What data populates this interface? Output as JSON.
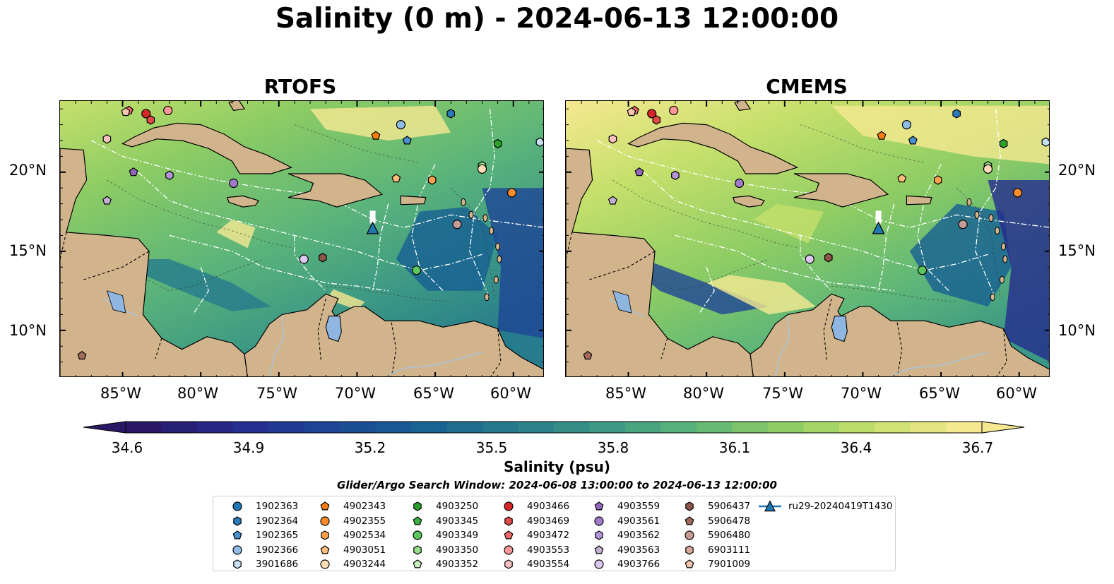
{
  "title": "Salinity (0 m) - 2024-06-13 12:00:00",
  "panels": [
    {
      "title": "RTOFS"
    },
    {
      "title": "CMEMS"
    }
  ],
  "axes": {
    "lon_ticks": [
      "85°W",
      "80°W",
      "75°W",
      "70°W",
      "65°W",
      "60°W"
    ],
    "lat_ticks": [
      "20°N",
      "15°N",
      "10°N"
    ],
    "lon_range": [
      -89,
      -58
    ],
    "lat_range": [
      7,
      24.5
    ]
  },
  "colorbar": {
    "label": "Salinity (psu)",
    "ticks": [
      "34.6",
      "34.9",
      "35.2",
      "35.5",
      "35.8",
      "36.1",
      "36.4",
      "36.7"
    ],
    "range": [
      34.6,
      36.7
    ],
    "colors": [
      "#2a1866",
      "#262a8e",
      "#1e4596",
      "#175f94",
      "#267b8c",
      "#3a9685",
      "#5ab47a",
      "#8ccc64",
      "#c6e06b",
      "#f6e891"
    ]
  },
  "search_window": "Glider/Argo Search Window: 2024-06-08 13:00:00 to 2024-06-13 12:00:00",
  "legend": [
    {
      "label": "1902363",
      "color": "#1f77b4",
      "marker": "circle"
    },
    {
      "label": "1902364",
      "color": "#2b7bba",
      "marker": "hexagon"
    },
    {
      "label": "1902365",
      "color": "#4a90d0",
      "marker": "pentagon"
    },
    {
      "label": "1902366",
      "color": "#8fbde6",
      "marker": "circle"
    },
    {
      "label": "3901686",
      "color": "#c8e0f4",
      "marker": "hexagon"
    },
    {
      "label": "4902343",
      "color": "#ff7f0e",
      "marker": "pentagon"
    },
    {
      "label": "4902355",
      "color": "#ff8c2a",
      "marker": "circle"
    },
    {
      "label": "4902534",
      "color": "#ffa04a",
      "marker": "hexagon"
    },
    {
      "label": "4903051",
      "color": "#ffbe7d",
      "marker": "pentagon"
    },
    {
      "label": "4903244",
      "color": "#ffdcb8",
      "marker": "circle"
    },
    {
      "label": "4903250",
      "color": "#2ca02c",
      "marker": "hexagon"
    },
    {
      "label": "4903345",
      "color": "#3cb043",
      "marker": "pentagon"
    },
    {
      "label": "4903349",
      "color": "#5cc75a",
      "marker": "circle"
    },
    {
      "label": "4903350",
      "color": "#98df8a",
      "marker": "hexagon"
    },
    {
      "label": "4903352",
      "color": "#c9f2c0",
      "marker": "pentagon"
    },
    {
      "label": "4903466",
      "color": "#d62728",
      "marker": "circle"
    },
    {
      "label": "4903469",
      "color": "#e34a4a",
      "marker": "hexagon"
    },
    {
      "label": "4903472",
      "color": "#f06a6a",
      "marker": "pentagon"
    },
    {
      "label": "4903553",
      "color": "#ff9896",
      "marker": "circle"
    },
    {
      "label": "4903554",
      "color": "#ffc2c0",
      "marker": "hexagon"
    },
    {
      "label": "4903559",
      "color": "#9467bd",
      "marker": "pentagon"
    },
    {
      "label": "4903561",
      "color": "#a07bc8",
      "marker": "circle"
    },
    {
      "label": "4903562",
      "color": "#b394d8",
      "marker": "hexagon"
    },
    {
      "label": "4903563",
      "color": "#c5b0d5",
      "marker": "pentagon"
    },
    {
      "label": "4903766",
      "color": "#dcc8ee",
      "marker": "circle"
    },
    {
      "label": "5906437",
      "color": "#8c564b",
      "marker": "hexagon"
    },
    {
      "label": "5906478",
      "color": "#a0695c",
      "marker": "pentagon"
    },
    {
      "label": "5906480",
      "color": "#c49c94",
      "marker": "circle"
    },
    {
      "label": "6903111",
      "color": "#d8a898",
      "marker": "hexagon"
    },
    {
      "label": "7901009",
      "color": "#f7c6b0",
      "marker": "pentagon"
    },
    {
      "label": "ru29-20240419T1430",
      "color": "#1f77b4",
      "marker": "triangle-line"
    }
  ],
  "floats": [
    {
      "id": "1902366",
      "lon": -67.2,
      "lat": 23.0
    },
    {
      "id": "1902364",
      "lon": -64.0,
      "lat": 23.7
    },
    {
      "id": "1902365",
      "lon": -66.8,
      "lat": 22.0
    },
    {
      "id": "4902343",
      "lon": -68.8,
      "lat": 22.3
    },
    {
      "id": "4903250",
      "lon": -61.0,
      "lat": 21.8
    },
    {
      "id": "3901686",
      "lon": -58.3,
      "lat": 21.9
    },
    {
      "id": "4903350",
      "lon": -62.0,
      "lat": 20.4
    },
    {
      "id": "4903244",
      "lon": -62.0,
      "lat": 20.2
    },
    {
      "id": "4903051",
      "lon": -67.5,
      "lat": 19.6
    },
    {
      "id": "4902534",
      "lon": -65.2,
      "lat": 19.5
    },
    {
      "id": "4902355",
      "lon": -60.1,
      "lat": 18.7
    },
    {
      "id": "4903466",
      "lon": -83.5,
      "lat": 23.7
    },
    {
      "id": "4903469",
      "lon": -83.2,
      "lat": 23.3
    },
    {
      "id": "4903472",
      "lon": -84.6,
      "lat": 23.9
    },
    {
      "id": "4903553",
      "lon": -82.1,
      "lat": 23.9
    },
    {
      "id": "7901009",
      "lon": -84.8,
      "lat": 23.8
    },
    {
      "id": "4903554",
      "lon": -86.0,
      "lat": 22.1
    },
    {
      "id": "4903559",
      "lon": -84.3,
      "lat": 20.0
    },
    {
      "id": "4903562",
      "lon": -82.0,
      "lat": 19.8
    },
    {
      "id": "4903561",
      "lon": -77.9,
      "lat": 19.3
    },
    {
      "id": "4903563",
      "lon": -86.0,
      "lat": 18.2
    },
    {
      "id": "5906480",
      "lon": -63.6,
      "lat": 16.7
    },
    {
      "id": "4903349",
      "lon": -66.2,
      "lat": 13.8
    },
    {
      "id": "4903766",
      "lon": -73.4,
      "lat": 14.5
    },
    {
      "id": "5906437",
      "lon": -72.2,
      "lat": 14.6
    },
    {
      "id": "5906478",
      "lon": -87.6,
      "lat": 8.4
    }
  ],
  "glider": {
    "id": "ru29-20240419T1430",
    "lon": -69.0,
    "lat": 16.4
  },
  "colors": {
    "land": "#d2b48c",
    "pacific": "#2a1866",
    "lake": "#8eb6e0",
    "river": "#a7c4e0",
    "eez": "#ffffff"
  }
}
